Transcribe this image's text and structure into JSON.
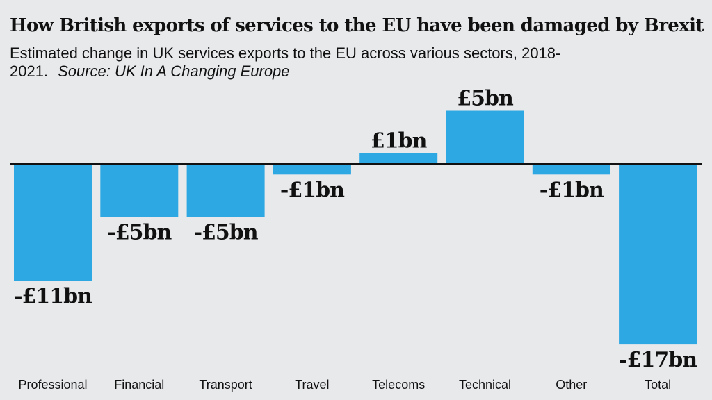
{
  "header": {
    "title": "How British exports of services to the EU have been damaged by Brexit",
    "subtitle": "Estimated change in UK services exports to the EU across various sectors, 2018-2021.",
    "source": "Source: UK In A Changing Europe"
  },
  "chart_data": {
    "type": "bar",
    "categories": [
      "Professional",
      "Financial",
      "Transport",
      "Travel",
      "Telecoms",
      "Technical",
      "Other",
      "Total"
    ],
    "values": [
      -11,
      -5,
      -5,
      -1,
      1,
      5,
      -1,
      -17
    ],
    "data_labels": [
      "-£11bn",
      "-£5bn",
      "-£5bn",
      "-£1bn",
      "£1bn",
      "£5bn",
      "-£1bn",
      "-£17bn"
    ],
    "unit": "£bn",
    "title": "How British exports of services to the EU have been damaged by Brexit",
    "xlabel": "",
    "ylabel": "",
    "ylim": [
      -17,
      5
    ],
    "grid": false,
    "legend": "none",
    "bar_color": "#2ea8e2",
    "baseline_color": "#111111"
  }
}
